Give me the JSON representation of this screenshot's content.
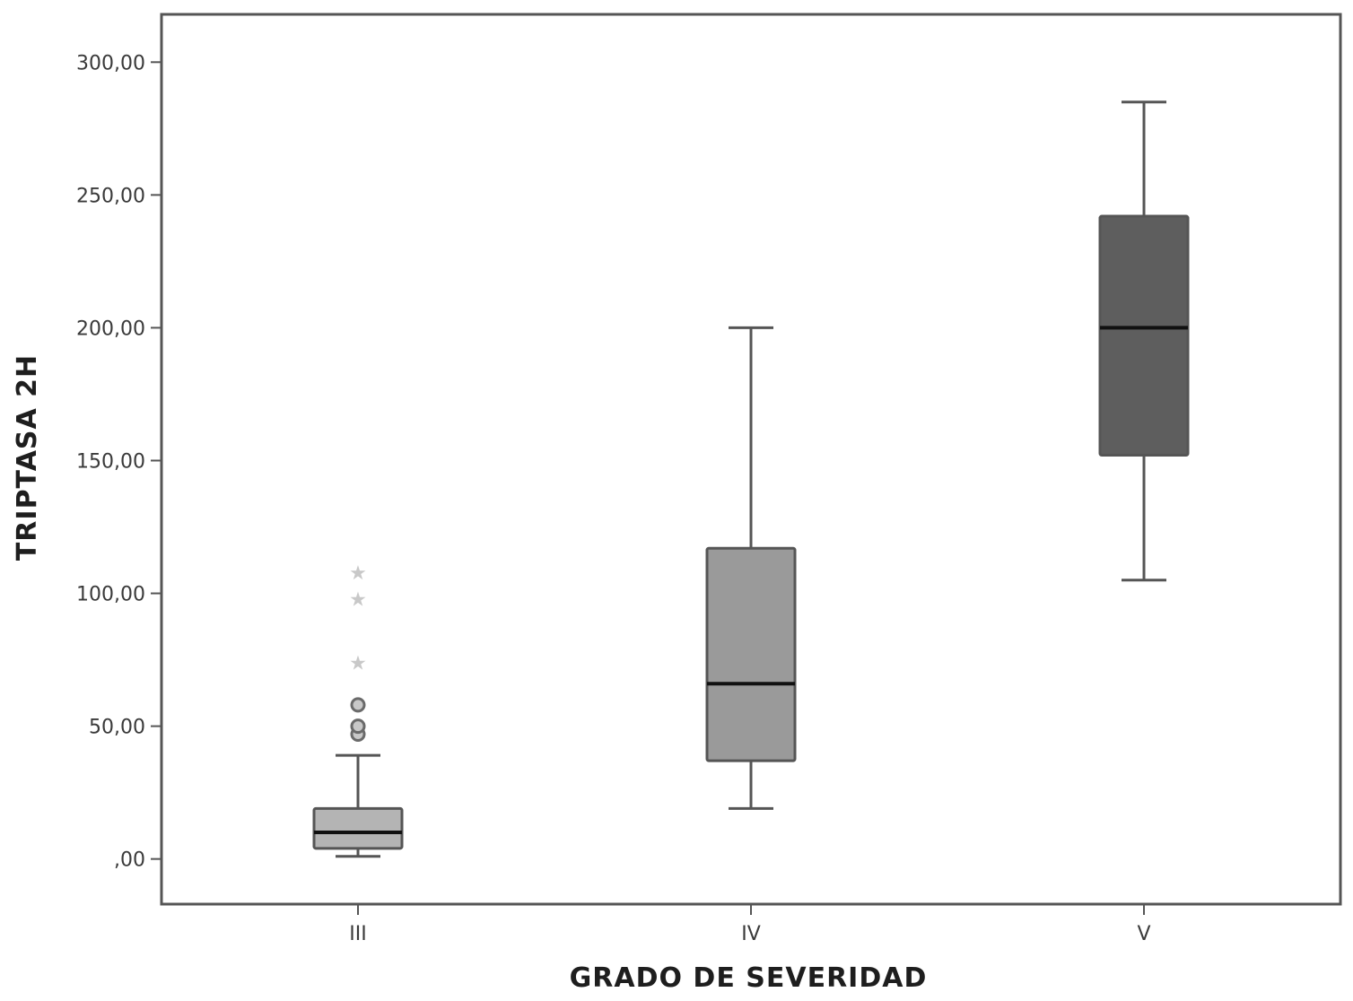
{
  "chart_data": {
    "type": "boxplot",
    "xlabel": "GRADO DE SEVERIDAD",
    "ylabel": "TRIPTASA 2H",
    "ylim": [
      -17,
      318
    ],
    "yticks": [
      {
        "value": 0,
        "label": ",00"
      },
      {
        "value": 50,
        "label": "50,00"
      },
      {
        "value": 100,
        "label": "100,00"
      },
      {
        "value": 150,
        "label": "150,00"
      },
      {
        "value": 200,
        "label": "200,00"
      },
      {
        "value": 250,
        "label": "250,00"
      },
      {
        "value": 300,
        "label": "300,00"
      }
    ],
    "grid": false,
    "legend": "none",
    "groups": [
      {
        "category": "III",
        "whisker_low": 1,
        "q1": 4,
        "median": 10,
        "q3": 19,
        "whisker_high": 39,
        "outliers": [
          47,
          50,
          58
        ],
        "extremes": [
          74,
          98,
          108
        ],
        "fill": "#b4b4b4"
      },
      {
        "category": "IV",
        "whisker_low": 19,
        "q1": 37,
        "median": 66,
        "q3": 117,
        "whisker_high": 200,
        "outliers": [],
        "extremes": [],
        "fill": "#9a9a9a"
      },
      {
        "category": "V",
        "whisker_low": 105,
        "q1": 152,
        "median": 200,
        "q3": 242,
        "whisker_high": 285,
        "outliers": [],
        "extremes": [],
        "fill": "#5e5e5e"
      }
    ]
  }
}
